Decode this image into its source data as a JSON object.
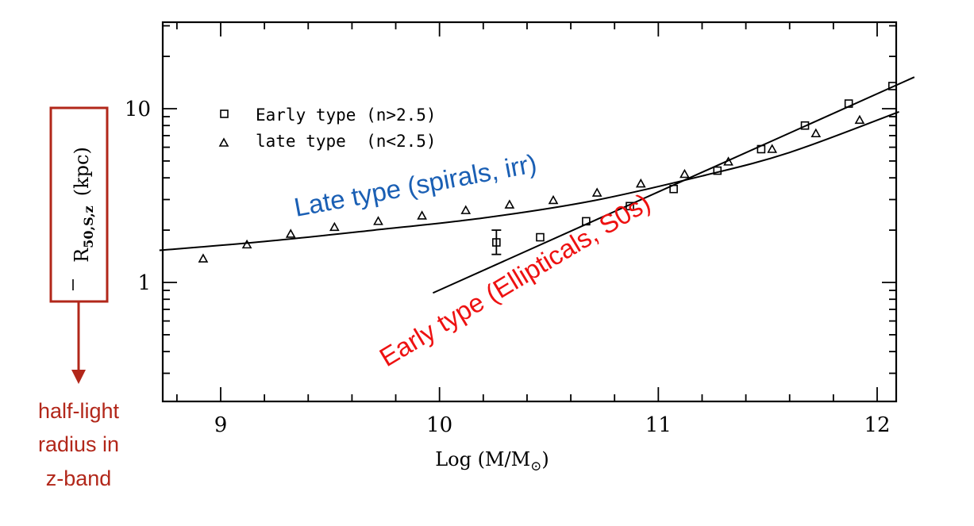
{
  "chart_data": {
    "type": "scatter",
    "xlabel": "Log (M/M",
    "xlabel_sub": "⊙",
    "xlabel_close": ")",
    "ylabel": "(kpc)",
    "ylabel_symbol": "R",
    "ylabel_sub": "50,S,z",
    "xlim": [
      8.7,
      12.2
    ],
    "ylim": [
      0.3,
      30
    ],
    "yscale": "log",
    "xticks": [
      9,
      10,
      11,
      12
    ],
    "xtick_labels": [
      "9",
      "10",
      "11",
      "12"
    ],
    "yticks": [
      1,
      10
    ],
    "ytick_labels": [
      "1",
      "10"
    ],
    "legend": {
      "placement": "top-left",
      "entries": [
        {
          "marker": "square",
          "label": "Early type (n>2.5)"
        },
        {
          "marker": "triangle",
          "label": "late type  (n<2.5)"
        }
      ]
    },
    "series": [
      {
        "name": "Early type (n>2.5)",
        "marker": "square",
        "points": [
          {
            "x": 10.26,
            "y": 1.7,
            "err_low": 1.45,
            "err_high": 2.0
          },
          {
            "x": 10.46,
            "y": 1.82
          },
          {
            "x": 10.67,
            "y": 2.25
          },
          {
            "x": 10.87,
            "y": 2.75
          },
          {
            "x": 11.07,
            "y": 3.45
          },
          {
            "x": 11.27,
            "y": 4.4
          },
          {
            "x": 11.47,
            "y": 5.85
          },
          {
            "x": 11.67,
            "y": 8.0
          },
          {
            "x": 11.87,
            "y": 10.7
          },
          {
            "x": 12.07,
            "y": 13.5
          }
        ],
        "fit": [
          {
            "x": 9.97,
            "y": 0.87
          },
          {
            "x": 12.17,
            "y": 15.2
          }
        ]
      },
      {
        "name": "late type  (n<2.5)",
        "marker": "triangle",
        "points": [
          {
            "x": 8.92,
            "y": 1.37
          },
          {
            "x": 9.12,
            "y": 1.65
          },
          {
            "x": 9.32,
            "y": 1.9
          },
          {
            "x": 9.52,
            "y": 2.08
          },
          {
            "x": 9.72,
            "y": 2.25
          },
          {
            "x": 9.92,
            "y": 2.42
          },
          {
            "x": 10.12,
            "y": 2.6
          },
          {
            "x": 10.32,
            "y": 2.8
          },
          {
            "x": 10.52,
            "y": 2.97
          },
          {
            "x": 10.72,
            "y": 3.28
          },
          {
            "x": 10.92,
            "y": 3.7
          },
          {
            "x": 11.12,
            "y": 4.2
          },
          {
            "x": 11.32,
            "y": 4.95
          },
          {
            "x": 11.52,
            "y": 5.85
          },
          {
            "x": 11.72,
            "y": 7.2
          },
          {
            "x": 11.92,
            "y": 8.6
          }
        ],
        "fit": [
          {
            "x": 8.72,
            "y": 1.53
          },
          {
            "x": 9.2,
            "y": 1.72
          },
          {
            "x": 9.7,
            "y": 2.0
          },
          {
            "x": 10.2,
            "y": 2.35
          },
          {
            "x": 10.7,
            "y": 2.95
          },
          {
            "x": 11.2,
            "y": 4.1
          },
          {
            "x": 11.6,
            "y": 5.6
          },
          {
            "x": 12.1,
            "y": 9.6
          }
        ]
      }
    ],
    "annotations": [
      {
        "text": "Late type (spirals, irr)",
        "color": "#1a5fb4"
      },
      {
        "text": "Early type (Ellipticals, S0s)",
        "color": "#ee1111"
      }
    ]
  },
  "side_note": {
    "lines": [
      "half-light",
      "radius in",
      "z-band"
    ],
    "color": "#b2271a"
  }
}
